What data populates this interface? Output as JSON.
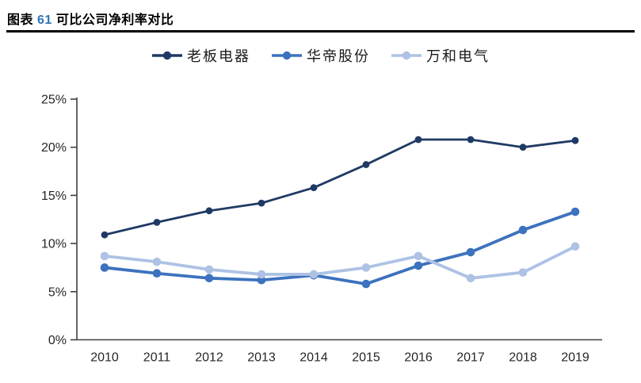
{
  "title": {
    "prefix": "图表",
    "number": "61",
    "text": "可比公司净利率对比"
  },
  "colors": {
    "title_number": "#2e74b5",
    "axis_line": "#404040",
    "tick_label": "#262626",
    "series_dark": "#1f3a64",
    "series_medium": "#3c72be",
    "series_light": "#adc2e4"
  },
  "chart_data": {
    "type": "line",
    "title": "图表 61 可比公司净利率对比",
    "categories": [
      "2010",
      "2011",
      "2012",
      "2013",
      "2014",
      "2015",
      "2016",
      "2017",
      "2018",
      "2019"
    ],
    "series": [
      {
        "name": "老板电器",
        "color": "#1f3a64",
        "values": [
          10.9,
          12.2,
          13.4,
          14.2,
          15.8,
          18.2,
          20.8,
          20.8,
          20.0,
          20.7
        ]
      },
      {
        "name": "华帝股份",
        "color": "#3c72be",
        "values": [
          7.5,
          6.9,
          6.4,
          6.2,
          6.7,
          5.8,
          7.7,
          9.1,
          11.4,
          13.3
        ]
      },
      {
        "name": "万和电气",
        "color": "#adc2e4",
        "values": [
          8.7,
          8.1,
          7.3,
          6.8,
          6.8,
          7.5,
          8.7,
          6.4,
          7.0,
          9.7
        ]
      }
    ],
    "xlabel": "",
    "ylabel": "",
    "ylim": [
      0,
      25
    ],
    "y_tick_labels": [
      "0%",
      "5%",
      "10%",
      "15%",
      "20%",
      "25%"
    ],
    "y_tick_values": [
      0,
      5,
      10,
      15,
      20,
      25
    ],
    "grid": false,
    "legend_position": "top"
  }
}
